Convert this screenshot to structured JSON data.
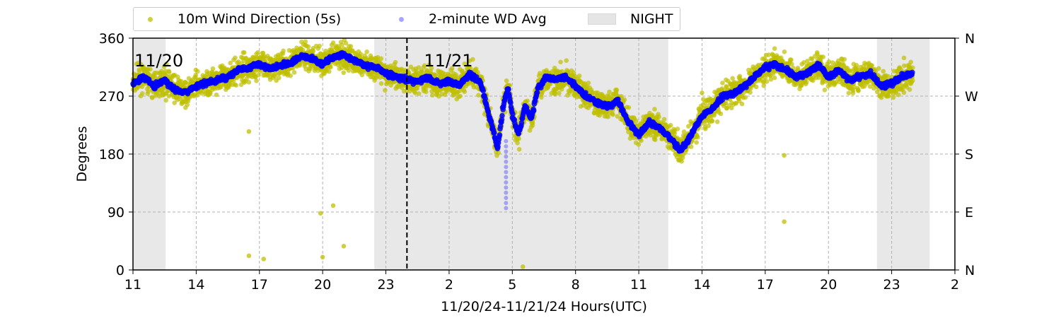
{
  "chart_data": {
    "type": "scatter",
    "xlabel": "11/20/24-11/21/24  Hours(UTC)",
    "ylabel": "Degrees",
    "x_ticks": [
      "11",
      "14",
      "17",
      "20",
      "23",
      "2",
      "5",
      "8",
      "11",
      "14",
      "17",
      "20",
      "23",
      "2"
    ],
    "x_range_hours": [
      0,
      39
    ],
    "ylim": [
      0,
      360
    ],
    "y_ticks": [
      0,
      90,
      180,
      270,
      360
    ],
    "y2_ticks": [
      "N",
      "E",
      "S",
      "W",
      "N"
    ],
    "grid": true,
    "legend_position": "top-left outside",
    "legend": {
      "wind_5s": "10m Wind Direction (5s)",
      "wind_avg": "2-minute WD Avg",
      "night": "NIGHT"
    },
    "day_labels": [
      "11/20",
      "11/21"
    ],
    "day_boundary_hour": 13,
    "night_periods_hours": [
      [
        0,
        1.55
      ],
      [
        11.45,
        25.4
      ],
      [
        35.3,
        37.8
      ]
    ],
    "colors": {
      "wind_5s": "#bfbf00",
      "wind_avg": "#0000ff",
      "night": "#e5e5e5"
    },
    "series": [
      {
        "name": "2-minute WD Avg",
        "x": [
          0,
          0.5,
          1.0,
          1.5,
          2.0,
          2.5,
          3.0,
          3.5,
          4.0,
          4.5,
          5.0,
          5.5,
          6.0,
          6.5,
          7.0,
          7.5,
          8.0,
          8.5,
          9.0,
          9.5,
          10.0,
          10.5,
          11.0,
          11.5,
          12.0,
          12.5,
          13.0,
          13.5,
          14.0,
          14.5,
          15.0,
          15.5,
          16.0,
          16.5,
          16.9,
          17.3,
          17.6,
          17.8,
          18.0,
          18.3,
          18.6,
          18.9,
          19.2,
          19.6,
          20.0,
          20.5,
          21.0,
          21.5,
          22.0,
          22.5,
          23.0,
          23.5,
          24.0,
          24.5,
          25.0,
          25.5,
          26.0,
          26.5,
          27.0,
          27.5,
          28.0,
          28.5,
          29.0,
          29.5,
          30.0,
          30.5,
          31.0,
          31.5,
          32.0,
          32.5,
          33.0,
          33.5,
          34.0,
          34.5,
          35.0,
          35.5,
          36.0,
          36.5,
          37.0
        ],
        "values": [
          290,
          300,
          285,
          295,
          280,
          275,
          285,
          290,
          295,
          300,
          310,
          315,
          320,
          312,
          318,
          322,
          332,
          328,
          320,
          330,
          335,
          325,
          318,
          315,
          305,
          300,
          295,
          292,
          298,
          290,
          292,
          288,
          305,
          290,
          240,
          190,
          260,
          285,
          240,
          210,
          255,
          235,
          280,
          300,
          295,
          300,
          285,
          270,
          260,
          255,
          262,
          230,
          210,
          230,
          220,
          205,
          185,
          210,
          240,
          250,
          270,
          275,
          285,
          300,
          315,
          320,
          310,
          300,
          305,
          318,
          300,
          310,
          295,
          300,
          305,
          285,
          290,
          300,
          305
        ]
      },
      {
        "name": "10m Wind Direction (5s)",
        "outliers": [
          {
            "x": 5.5,
            "y": 215
          },
          {
            "x": 8.9,
            "y": 88
          },
          {
            "x": 9.5,
            "y": 100
          },
          {
            "x": 27.0,
            "y": 275
          },
          {
            "x": 30.9,
            "y": 178
          },
          {
            "x": 30.9,
            "y": 75
          },
          {
            "x": 18.5,
            "y": 5
          },
          {
            "x": 5.5,
            "y": 22
          },
          {
            "x": 9.0,
            "y": 20
          },
          {
            "x": 10.0,
            "y": 37
          },
          {
            "x": 6.2,
            "y": 17
          }
        ]
      }
    ]
  }
}
